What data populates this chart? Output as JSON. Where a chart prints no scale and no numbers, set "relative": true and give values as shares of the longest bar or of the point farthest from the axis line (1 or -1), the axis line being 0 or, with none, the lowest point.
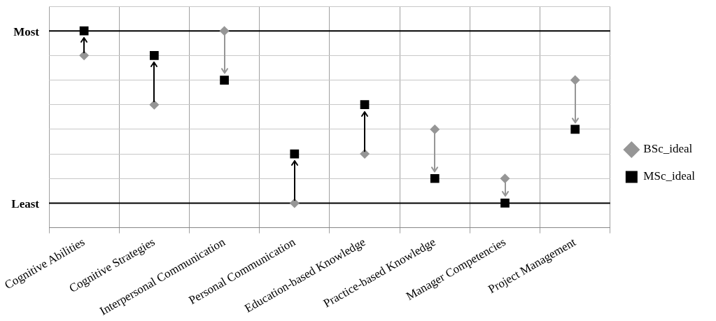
{
  "chart_data": {
    "type": "scatter",
    "categories": [
      "Cognitive Abilities",
      "Cognitive Strategies",
      "Interpersonal Communication",
      "Personal Communication",
      "Education-based Knowledge",
      "Practice-based Knowledge",
      "Manager Competencies",
      "Project Management"
    ],
    "series": [
      {
        "name": "BSc_ideal",
        "color": "#969696",
        "marker": "diamond",
        "values": [
          0.875,
          0.625,
          1,
          0.125,
          0.375,
          0.5,
          0.25,
          0.75
        ]
      },
      {
        "name": "MSc_ideal",
        "color": "#000000",
        "marker": "square",
        "values": [
          1,
          0.875,
          0.75,
          0.375,
          0.625,
          0.25,
          0.125,
          0.5
        ]
      }
    ],
    "relative": true,
    "ref_lines": [
      {
        "axis": "y",
        "value": 0.125,
        "label": "Least",
        "color": "#000000"
      },
      {
        "axis": "y",
        "value": 1,
        "label": "Most",
        "color": "#000000"
      }
    ],
    "grid": true,
    "legend": "right"
  }
}
